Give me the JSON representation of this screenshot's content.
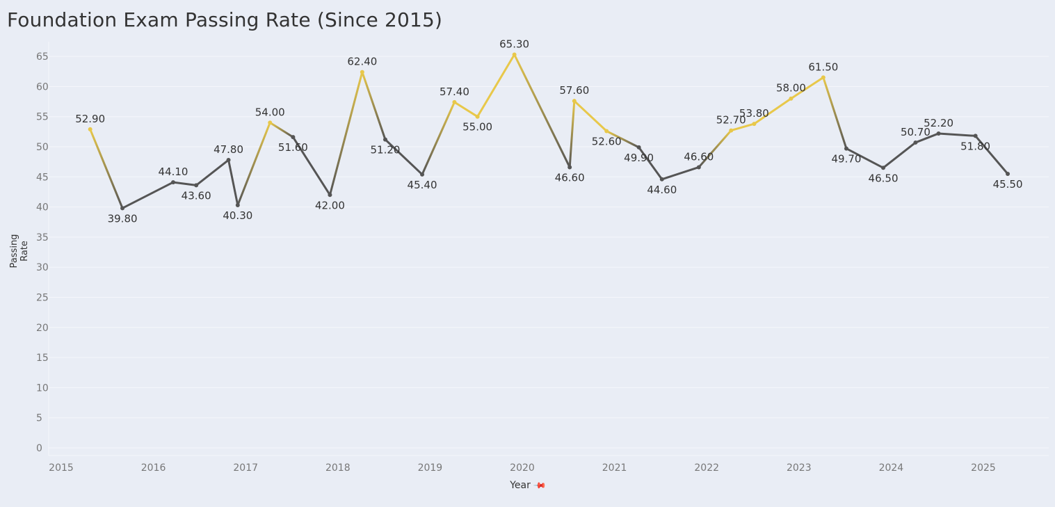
{
  "title": "Foundation Exam Passing Rate (Since 2015)",
  "chart_data": {
    "type": "line",
    "title": "Foundation Exam Passing Rate (Since 2015)",
    "xlabel": "Year",
    "ylabel": "Passing Rate",
    "xlim": [
      2015,
      2025.9
    ],
    "ylim": [
      0,
      67
    ],
    "x_ticks": [
      "2015",
      "2016",
      "2017",
      "2018",
      "2019",
      "2020",
      "2021",
      "2022",
      "2023",
      "2024",
      "2025"
    ],
    "y_ticks": [
      "0",
      "5",
      "10",
      "15",
      "20",
      "25",
      "30",
      "35",
      "40",
      "45",
      "50",
      "55",
      "60",
      "65"
    ],
    "grid": true,
    "legend": "none",
    "colors": {
      "high": "#e8c84a",
      "low": "#555555"
    },
    "series": [
      {
        "x": [
          2015.45,
          2015.8,
          2016.35,
          2016.6,
          2016.95,
          2017.05,
          2017.4,
          2017.65,
          2018.05,
          2018.4,
          2018.65,
          2019.05,
          2019.4,
          2019.65,
          2020.05,
          2020.65,
          2020.7,
          2021.05,
          2021.4,
          2021.65,
          2022.05,
          2022.4,
          2022.65,
          2023.05,
          2023.4,
          2023.65,
          2024.05,
          2024.4,
          2024.65,
          2025.05,
          2025.4
        ],
        "values": [
          52.9,
          39.8,
          44.1,
          43.6,
          47.8,
          40.3,
          54.0,
          51.6,
          42.0,
          62.4,
          51.2,
          45.4,
          57.4,
          55.0,
          65.3,
          46.6,
          57.6,
          52.6,
          49.9,
          44.6,
          46.6,
          52.7,
          53.8,
          58.0,
          61.5,
          49.7,
          46.5,
          50.7,
          52.2,
          51.8,
          45.5
        ],
        "labels": [
          "52.90",
          "39.80",
          "44.10",
          "43.60",
          "47.80",
          "40.30",
          "54.00",
          "51.60",
          "42.00",
          "62.40",
          "51.20",
          "45.40",
          "57.40",
          "55.00",
          "65.30",
          "46.60",
          "57.60",
          "52.60",
          "49.90",
          "44.60",
          "46.60",
          "52.70",
          "53.80",
          "58.00",
          "61.50",
          "49.70",
          "46.50",
          "50.70",
          "52.20",
          "51.80",
          "45.50"
        ]
      }
    ]
  }
}
